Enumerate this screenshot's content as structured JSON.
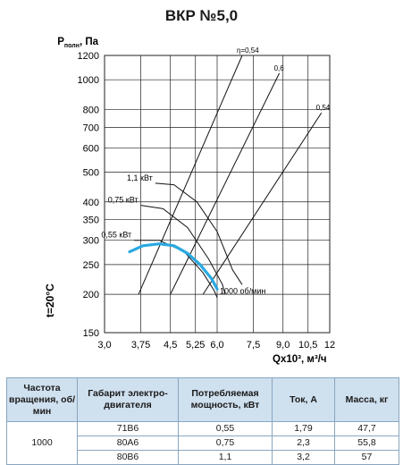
{
  "title": "ВКР №5,0",
  "chart_data": {
    "type": "line",
    "title": "ВКР №5,0",
    "ylabel_main": "P",
    "ylabel_sub": "полн",
    "ylabel_unit": ", Па",
    "xlabel": "Qx10³, м³/ч",
    "temperature_label": "t=20°C",
    "y_scale": "log",
    "ylim": [
      150,
      1200
    ],
    "xlim": [
      3.0,
      12
    ],
    "x_scale": "log",
    "y_ticks": [
      150,
      200,
      250,
      300,
      350,
      400,
      500,
      600,
      700,
      800,
      1000,
      1200
    ],
    "x_ticks": [
      3.0,
      3.75,
      4.5,
      5.25,
      6.0,
      7.5,
      9.0,
      10.5,
      12
    ],
    "x_tick_labels": [
      "3,0",
      "3,75",
      "4,5",
      "5,25",
      "6,0",
      "7,5",
      "9,0",
      "10,5",
      "12"
    ],
    "efficiency_lines": [
      {
        "label": "η=0,54",
        "points": [
          [
            3.7,
            200
          ],
          [
            7.0,
            1200
          ]
        ]
      },
      {
        "label": "0,6",
        "points": [
          [
            4.5,
            200
          ],
          [
            8.8,
            1050
          ]
        ]
      },
      {
        "label": "0,54",
        "points": [
          [
            5.5,
            200
          ],
          [
            11.4,
            780
          ]
        ]
      }
    ],
    "power_curves": [
      {
        "label": "1,1 кВт",
        "points": [
          [
            4.1,
            460
          ],
          [
            4.6,
            455
          ],
          [
            5.3,
            400
          ],
          [
            6.0,
            320
          ],
          [
            6.6,
            240
          ],
          [
            7.0,
            215
          ]
        ]
      },
      {
        "label": "0,75 кВт",
        "points": [
          [
            3.75,
            390
          ],
          [
            4.3,
            380
          ],
          [
            5.0,
            330
          ],
          [
            5.7,
            260
          ],
          [
            6.2,
            215
          ],
          [
            6.3,
            200
          ]
        ]
      },
      {
        "label": "0,55 кВт",
        "points": [
          [
            3.6,
            300
          ],
          [
            4.2,
            300
          ],
          [
            4.9,
            275
          ],
          [
            5.5,
            235
          ],
          [
            5.9,
            205
          ],
          [
            6.0,
            195
          ]
        ]
      }
    ],
    "operating_curve": {
      "label": "1000 об/мин",
      "color": "#29a9e1",
      "points": [
        [
          3.5,
          275
        ],
        [
          3.8,
          288
        ],
        [
          4.2,
          292
        ],
        [
          4.6,
          288
        ],
        [
          5.0,
          272
        ],
        [
          5.4,
          250
        ],
        [
          5.8,
          225
        ],
        [
          6.0,
          208
        ]
      ]
    }
  },
  "table": {
    "headers": [
      "Частота вращения, об/мин",
      "Габарит электро-двигателя",
      "Потребляемая мощность, кВт",
      "Ток, А",
      "Масса, кг"
    ],
    "speed": "1000",
    "rows": [
      [
        "71В6",
        "0,55",
        "1,79",
        "47,7"
      ],
      [
        "80А6",
        "0,75",
        "2,3",
        "55,8"
      ],
      [
        "80В6",
        "1,1",
        "3,2",
        "57"
      ]
    ]
  }
}
